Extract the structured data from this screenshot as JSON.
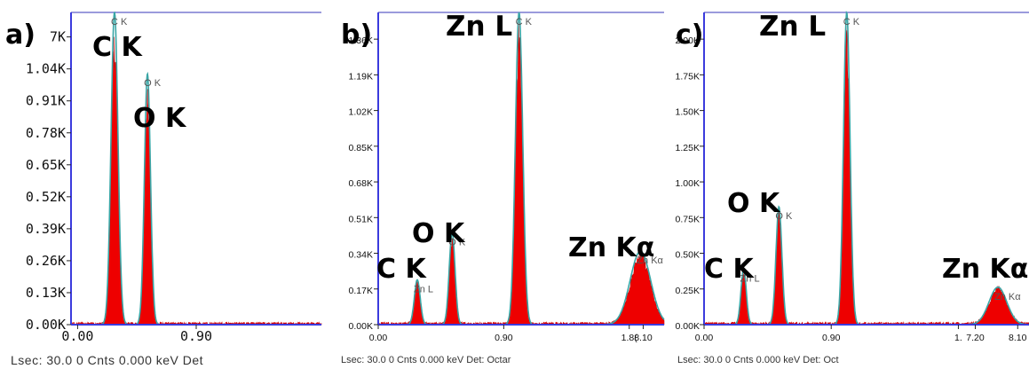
{
  "chart_data": [
    {
      "type": "line",
      "panel_label": "a)",
      "x_ticks": [
        "0.00",
        "0.90"
      ],
      "y_ticks": [
        "0.00K",
        "0.13K",
        "0.26K",
        "0.39K",
        "0.52K",
        "0.65K",
        "0.78K",
        "0.91K",
        "1.04K",
        "7K"
      ],
      "ylim": [
        0,
        1.17
      ],
      "xlim": [
        -0.05,
        1.85
      ],
      "status": "Lsec: 30.0 0 Cnts  0.000 keV Det",
      "peaks": [
        {
          "label": "C K",
          "x": 0.28,
          "y": 1.17,
          "width": 0.025
        },
        {
          "label": "O K",
          "x": 0.53,
          "y": 0.94,
          "width": 0.022
        }
      ],
      "peak_labels": [
        "C K",
        "O K"
      ],
      "marker_labels": [
        "C K",
        "O K"
      ],
      "colors": {
        "fill": "#ee0000",
        "fit": "#3aa6a6",
        "axis": "#3b3bdd"
      }
    },
    {
      "type": "line",
      "panel_label": "b)",
      "x_ticks": [
        "0.00",
        "0.90",
        "1.8(",
        "8.10"
      ],
      "y_ticks": [
        "0.00K",
        "0.17K",
        "0.34K",
        "0.51K",
        "0.68K",
        "0.85K",
        "1.02K",
        "1.19K",
        "1.36K"
      ],
      "ylim": [
        0,
        1.53
      ],
      "xlim": [
        0.0,
        2.05
      ],
      "status": "Lsec: 30.0 0 Cnts  0.000 keV Det: Octar",
      "peaks": [
        {
          "label": "C K",
          "x": 0.28,
          "y": 0.22,
          "width": 0.02
        },
        {
          "label": "O K",
          "x": 0.53,
          "y": 0.45,
          "width": 0.02
        },
        {
          "label": "Zn L",
          "x": 1.01,
          "y": 1.53,
          "width": 0.025
        },
        {
          "label": "Zn Kα",
          "x": 1.88,
          "y": 0.36,
          "width": 0.07
        }
      ],
      "peak_labels": [
        "Zn L",
        "O K",
        "C K",
        "Zn Kα"
      ],
      "marker_labels": [
        "Zn L",
        "O K",
        "C K",
        "Zn Kα"
      ],
      "colors": {
        "fill": "#ee0000",
        "fit": "#3aa6a6",
        "axis": "#3b3bdd"
      }
    },
    {
      "type": "line",
      "panel_label": "c)",
      "x_ticks": [
        "0.00",
        "0.90",
        "1.",
        "7.20",
        "8.10"
      ],
      "y_ticks": [
        "0.00K",
        "0.25K",
        "0.50K",
        "0.75K",
        "1.00K",
        "1.25K",
        "1.50K",
        "1.75K",
        "2.00K"
      ],
      "ylim": [
        0,
        2.25
      ],
      "xlim": [
        0.0,
        2.3
      ],
      "status": "Lsec: 30.0 0 Cnts  0.000 keV Det: Oct",
      "peaks": [
        {
          "label": "C K",
          "x": 0.28,
          "y": 0.4,
          "width": 0.018
        },
        {
          "label": "O K",
          "x": 0.53,
          "y": 0.85,
          "width": 0.02
        },
        {
          "label": "Zn L",
          "x": 1.01,
          "y": 2.25,
          "width": 0.022
        },
        {
          "label": "Zn Kα",
          "x": 2.08,
          "y": 0.27,
          "width": 0.06
        }
      ],
      "peak_labels": [
        "Zn L",
        "O K",
        "C K",
        "Zn Kα"
      ],
      "marker_labels": [
        "Zn L",
        "O K",
        "C K",
        "Zn Kα"
      ],
      "colors": {
        "fill": "#ee0000",
        "fit": "#3aa6a6",
        "axis": "#3b3bdd"
      }
    }
  ]
}
